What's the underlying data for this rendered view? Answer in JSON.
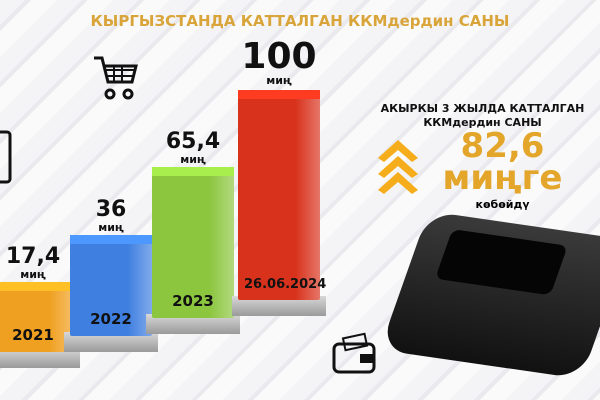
{
  "title": "КЫРГЫЗСТАНДА КАТТАЛГАН ККМдердин САНЫ",
  "chart_data": {
    "type": "bar",
    "title": "КЫРГЫЗСТАНДА КАТТАЛГАН ККМдердин САНЫ",
    "categories": [
      "2021",
      "2022",
      "2023",
      "26.06.2024"
    ],
    "values": [
      17.4,
      36,
      65.4,
      100
    ],
    "value_labels": [
      "17,4",
      "36",
      "65,4",
      "100"
    ],
    "unit": "миң",
    "colors": [
      "#f0a020",
      "#3f7fe0",
      "#8cc63f",
      "#d8321c"
    ]
  },
  "side": {
    "heading1": "АКЫРКЫ 3 ЖЫЛДА КАТТАЛГАН",
    "heading2": "ККМдердин  САНЫ",
    "value": "82,6",
    "unit": "миңге",
    "suffix": "көбөйдү",
    "accent": "#e3a52a"
  },
  "icons": [
    "shopping-cart-icon",
    "wallet-icon",
    "receipt-icon",
    "pos-terminal-icon",
    "chevron-up-icon"
  ]
}
